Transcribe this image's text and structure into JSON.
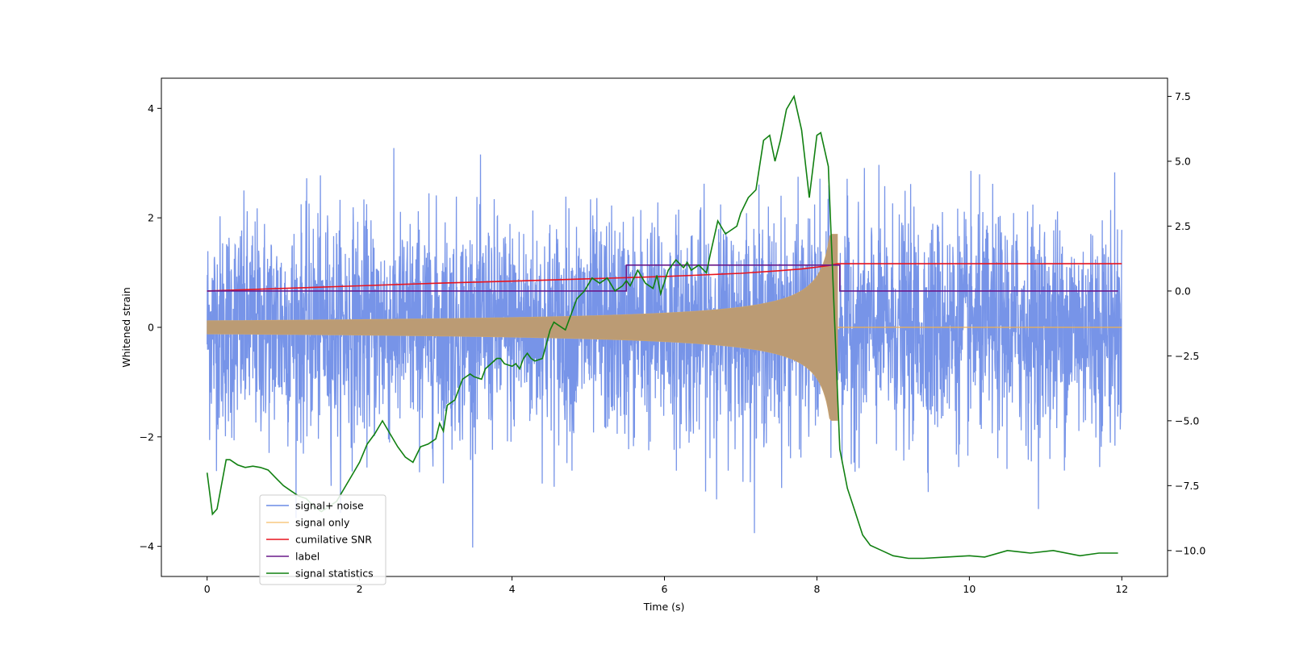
{
  "chart_data": {
    "type": "line",
    "title": "",
    "xlabel": "Time (s)",
    "ylabel": "Whitened strain",
    "y2label": "",
    "xlim": [
      -0.6,
      12.6
    ],
    "ylim": [
      -4.55,
      4.55
    ],
    "y2lim": [
      -11.0,
      8.2
    ],
    "xticks": [
      0,
      2,
      4,
      6,
      8,
      10,
      12
    ],
    "yticks": [
      -4,
      -2,
      0,
      2,
      4
    ],
    "y2ticks": [
      -10.0,
      -7.5,
      -5.0,
      -2.5,
      0.0,
      2.5,
      5.0,
      7.5
    ],
    "xtick_labels": [
      "0",
      "2",
      "4",
      "6",
      "8",
      "10",
      "12"
    ],
    "ytick_labels": [
      "−4",
      "−2",
      "0",
      "2",
      "4"
    ],
    "y2tick_labels": [
      "−10.0",
      "−7.5",
      "−5.0",
      "−2.5",
      "0.0",
      "2.5",
      "5.0",
      "7.5"
    ],
    "grid": false,
    "legend_position": "lower-left",
    "series": [
      {
        "name": "signal+ noise",
        "axis": "left",
        "color": "#6b8be6",
        "kind": "noise-band",
        "description_values": {
          "t_start": 0,
          "t_end": 12,
          "typical_low": -2.5,
          "typical_high": 2.5,
          "max": 4.1,
          "min": -4.15
        }
      },
      {
        "name": "signal only",
        "axis": "left",
        "color": "#f5b04c",
        "kind": "chirp",
        "description_values": {
          "t_start": 0,
          "t_merger": 8.27,
          "t_end": 12,
          "start_amplitude": 0.12,
          "peak_amplitude": 1.7
        }
      },
      {
        "name": "cumilative SNR",
        "axis": "right",
        "color": "#e8141e",
        "kind": "line",
        "x": [
          0,
          1,
          2,
          3,
          4,
          5,
          6,
          6.5,
          7,
          7.5,
          7.8,
          8.0,
          8.15,
          8.27,
          9,
          10,
          11,
          12
        ],
        "y": [
          0.0,
          0.1,
          0.2,
          0.3,
          0.38,
          0.47,
          0.56,
          0.62,
          0.68,
          0.78,
          0.85,
          0.92,
          0.98,
          1.05,
          1.05,
          1.05,
          1.05,
          1.05
        ]
      },
      {
        "name": "label",
        "axis": "right",
        "color": "#6a1a8a",
        "kind": "line",
        "x": [
          0,
          5.5,
          5.5,
          8.3,
          8.3,
          11.95
        ],
        "y": [
          0.0,
          0.0,
          1.0,
          1.0,
          0.0,
          0.0
        ]
      },
      {
        "name": "signal statistics",
        "axis": "right",
        "color": "#118011",
        "kind": "line",
        "x": [
          0,
          0.07,
          0.13,
          0.25,
          0.3,
          0.4,
          0.5,
          0.6,
          0.7,
          0.8,
          0.9,
          1.0,
          1.1,
          1.2,
          1.3,
          1.4,
          1.5,
          1.6,
          1.7,
          1.8,
          1.9,
          2.0,
          2.1,
          2.2,
          2.3,
          2.4,
          2.5,
          2.6,
          2.7,
          2.8,
          2.9,
          3.0,
          3.05,
          3.1,
          3.15,
          3.25,
          3.35,
          3.45,
          3.5,
          3.6,
          3.65,
          3.8,
          3.85,
          3.9,
          4.0,
          4.05,
          4.1,
          4.15,
          4.2,
          4.25,
          4.3,
          4.4,
          4.5,
          4.55,
          4.6,
          4.7,
          4.85,
          4.95,
          5.05,
          5.15,
          5.25,
          5.35,
          5.45,
          5.5,
          5.55,
          5.65,
          5.75,
          5.85,
          5.9,
          5.95,
          6.05,
          6.15,
          6.25,
          6.3,
          6.35,
          6.45,
          6.55,
          6.6,
          6.7,
          6.8,
          6.95,
          7.0,
          7.1,
          7.2,
          7.3,
          7.38,
          7.45,
          7.52,
          7.6,
          7.7,
          7.8,
          7.9,
          8.0,
          8.05,
          8.15,
          8.3,
          8.4,
          8.5,
          8.6,
          8.7,
          8.85,
          9.0,
          9.2,
          9.4,
          9.7,
          10.0,
          10.2,
          10.5,
          10.8,
          11.1,
          11.45,
          11.7,
          11.95
        ],
        "y": [
          -7.0,
          -8.6,
          -8.4,
          -6.5,
          -6.5,
          -6.7,
          -6.8,
          -6.75,
          -6.8,
          -6.9,
          -7.2,
          -7.5,
          -7.7,
          -7.9,
          -8.0,
          -8.3,
          -8.5,
          -8.3,
          -8.1,
          -7.6,
          -7.1,
          -6.6,
          -5.9,
          -5.5,
          -5.0,
          -5.5,
          -6.0,
          -6.4,
          -6.6,
          -6.0,
          -5.9,
          -5.7,
          -5.1,
          -5.4,
          -4.4,
          -4.2,
          -3.4,
          -3.2,
          -3.3,
          -3.4,
          -3.0,
          -2.6,
          -2.6,
          -2.8,
          -2.9,
          -2.8,
          -3.0,
          -2.6,
          -2.4,
          -2.6,
          -2.7,
          -2.6,
          -1.5,
          -1.2,
          -1.3,
          -1.5,
          -0.3,
          0.0,
          0.5,
          0.3,
          0.5,
          0.0,
          0.2,
          0.4,
          0.2,
          0.8,
          0.3,
          0.1,
          0.6,
          -0.1,
          0.8,
          1.2,
          0.9,
          1.1,
          0.8,
          1.0,
          0.7,
          1.4,
          2.7,
          2.2,
          2.5,
          3.0,
          3.6,
          3.9,
          5.8,
          6.0,
          5.0,
          5.8,
          7.0,
          7.5,
          6.2,
          3.6,
          6.0,
          6.1,
          4.8,
          -6.1,
          -7.6,
          -8.5,
          -9.4,
          -9.8,
          -10.0,
          -10.2,
          -10.3,
          -10.3,
          -10.25,
          -10.2,
          -10.25,
          -10.0,
          -10.1,
          -10.0,
          -10.2,
          -10.1,
          -10.1
        ]
      }
    ]
  }
}
